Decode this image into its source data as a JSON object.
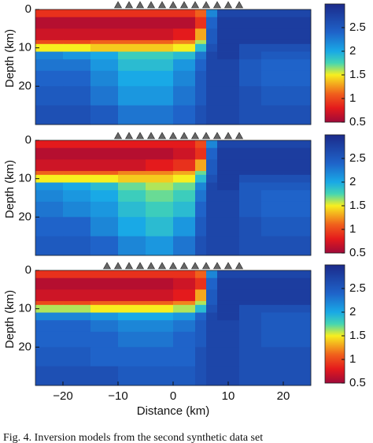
{
  "chart_data": [
    {
      "type": "heatmap",
      "ylabel": "Depth (km)",
      "xlim": [
        -25,
        25
      ],
      "ylim": [
        0,
        30
      ],
      "yticks": [
        0,
        10,
        20
      ],
      "xbins": [
        -25,
        -20,
        -15,
        -10,
        -5,
        0,
        4,
        6,
        8,
        12,
        16,
        20,
        25
      ],
      "ybins": [
        0,
        2,
        5,
        8,
        9,
        11,
        13,
        16,
        20,
        25,
        30
      ],
      "z": [
        [
          0.9,
          0.9,
          0.9,
          0.9,
          0.9,
          0.9,
          1.1,
          2.2,
          2.7,
          2.7,
          2.7,
          2.7
        ],
        [
          0.6,
          0.6,
          0.6,
          0.6,
          0.6,
          0.6,
          0.9,
          2.4,
          2.8,
          2.8,
          2.8,
          2.8
        ],
        [
          0.7,
          0.7,
          0.7,
          0.7,
          0.7,
          0.8,
          1.3,
          2.5,
          2.8,
          2.8,
          2.8,
          2.8
        ],
        [
          1.0,
          1.0,
          1.1,
          1.1,
          1.1,
          1.2,
          1.6,
          2.5,
          2.8,
          2.8,
          2.8,
          2.8
        ],
        [
          1.5,
          1.5,
          1.4,
          1.4,
          1.4,
          1.5,
          1.9,
          2.6,
          2.8,
          2.6,
          2.6,
          2.6
        ],
        [
          2.2,
          2.1,
          2.0,
          1.8,
          1.8,
          1.9,
          2.3,
          2.7,
          2.8,
          2.6,
          2.5,
          2.5
        ],
        [
          2.3,
          2.3,
          2.1,
          1.9,
          1.9,
          2.1,
          2.4,
          2.7,
          2.7,
          2.5,
          2.4,
          2.4
        ],
        [
          2.4,
          2.4,
          2.2,
          2.0,
          2.0,
          2.2,
          2.5,
          2.7,
          2.7,
          2.5,
          2.4,
          2.4
        ],
        [
          2.5,
          2.5,
          2.3,
          2.1,
          2.1,
          2.3,
          2.5,
          2.7,
          2.7,
          2.6,
          2.5,
          2.5
        ],
        [
          2.6,
          2.6,
          2.5,
          2.3,
          2.3,
          2.4,
          2.6,
          2.7,
          2.7,
          2.6,
          2.6,
          2.6
        ]
      ],
      "zlim": [
        0.5,
        3.0
      ],
      "zticks": [
        0.5,
        1,
        1.5,
        2,
        2.5
      ],
      "colormap": [
        [
          0.5,
          "#9e0a3a"
        ],
        [
          0.8,
          "#e41a1c"
        ],
        [
          1.1,
          "#f0601c"
        ],
        [
          1.5,
          "#f7ef1f"
        ],
        [
          1.75,
          "#45d6b2"
        ],
        [
          2.0,
          "#19a9e6"
        ],
        [
          2.4,
          "#1f63c9"
        ],
        [
          3.0,
          "#1b2a8a"
        ]
      ],
      "stations": [
        -10,
        -8,
        -6,
        -4,
        -2,
        0,
        2,
        4,
        6,
        8,
        10,
        12
      ]
    },
    {
      "type": "heatmap",
      "ylabel": "Depth (km)",
      "xlim": [
        -25,
        25
      ],
      "ylim": [
        0,
        30
      ],
      "yticks": [
        0,
        10,
        20
      ],
      "xbins": [
        -25,
        -20,
        -15,
        -10,
        -5,
        0,
        4,
        6,
        8,
        12,
        16,
        20,
        25
      ],
      "ybins": [
        0,
        2,
        5,
        8,
        9,
        11,
        13,
        16,
        20,
        25,
        30
      ],
      "z": [
        [
          0.8,
          0.8,
          0.8,
          0.8,
          0.8,
          0.8,
          1.0,
          2.2,
          2.7,
          2.7,
          2.7,
          2.7
        ],
        [
          0.6,
          0.6,
          0.6,
          0.6,
          0.6,
          0.7,
          0.9,
          2.4,
          2.8,
          2.8,
          2.8,
          2.8
        ],
        [
          0.7,
          0.7,
          0.7,
          0.7,
          0.8,
          0.9,
          1.3,
          2.5,
          2.8,
          2.8,
          2.8,
          2.8
        ],
        [
          1.1,
          1.1,
          1.1,
          1.2,
          1.2,
          1.3,
          1.7,
          2.5,
          2.8,
          2.8,
          2.8,
          2.8
        ],
        [
          1.5,
          1.5,
          1.5,
          1.4,
          1.4,
          1.5,
          1.9,
          2.6,
          2.8,
          2.6,
          2.6,
          2.6
        ],
        [
          2.1,
          2.0,
          1.9,
          1.7,
          1.6,
          1.7,
          2.2,
          2.7,
          2.8,
          2.5,
          2.5,
          2.5
        ],
        [
          2.2,
          2.1,
          2.0,
          1.8,
          1.7,
          1.8,
          2.3,
          2.7,
          2.7,
          2.5,
          2.4,
          2.4
        ],
        [
          2.3,
          2.2,
          2.1,
          1.9,
          1.8,
          1.9,
          2.4,
          2.7,
          2.7,
          2.5,
          2.4,
          2.4
        ],
        [
          2.4,
          2.4,
          2.2,
          2.0,
          1.9,
          2.1,
          2.5,
          2.7,
          2.7,
          2.6,
          2.5,
          2.5
        ],
        [
          2.5,
          2.5,
          2.4,
          2.2,
          2.1,
          2.3,
          2.6,
          2.7,
          2.7,
          2.6,
          2.6,
          2.6
        ]
      ],
      "zlim": [
        0.5,
        3.0
      ],
      "zticks": [
        0.5,
        1,
        1.5,
        2,
        2.5
      ],
      "colormap": [
        [
          0.5,
          "#9e0a3a"
        ],
        [
          0.8,
          "#e41a1c"
        ],
        [
          1.1,
          "#f0601c"
        ],
        [
          1.5,
          "#f7ef1f"
        ],
        [
          1.75,
          "#45d6b2"
        ],
        [
          2.0,
          "#19a9e6"
        ],
        [
          2.4,
          "#1f63c9"
        ],
        [
          3.0,
          "#1b2a8a"
        ]
      ],
      "stations": [
        -10,
        -8,
        -6,
        -4,
        -2,
        0,
        2,
        4,
        6,
        8,
        10,
        12
      ]
    },
    {
      "type": "heatmap",
      "ylabel": "Depth (km)",
      "xlabel": "Distance (km)",
      "xlim": [
        -25,
        25
      ],
      "ylim": [
        0,
        30
      ],
      "yticks": [
        0,
        10,
        20
      ],
      "xticks": [
        {
          "value": -20,
          "label": "−20"
        },
        {
          "value": -10,
          "label": "−10"
        },
        0,
        10,
        20
      ],
      "xbins": [
        -25,
        -20,
        -15,
        -10,
        -5,
        0,
        4,
        6,
        8,
        12,
        16,
        20,
        25
      ],
      "ybins": [
        0,
        2,
        5,
        8,
        9,
        11,
        13,
        16,
        20,
        25,
        30
      ],
      "z": [
        [
          0.9,
          0.9,
          0.9,
          0.9,
          0.9,
          0.9,
          1.1,
          2.2,
          2.7,
          2.7,
          2.7,
          2.7
        ],
        [
          0.6,
          0.6,
          0.6,
          0.6,
          0.6,
          0.7,
          0.9,
          2.4,
          2.8,
          2.8,
          2.8,
          2.8
        ],
        [
          0.7,
          0.7,
          0.7,
          0.7,
          0.7,
          0.8,
          1.3,
          2.5,
          2.8,
          2.8,
          2.8,
          2.8
        ],
        [
          1.0,
          1.0,
          1.1,
          1.1,
          1.1,
          1.2,
          1.6,
          2.5,
          2.8,
          2.8,
          2.8,
          2.8
        ],
        [
          1.6,
          1.6,
          1.5,
          1.5,
          1.5,
          1.6,
          1.9,
          2.6,
          2.8,
          2.6,
          2.6,
          2.6
        ],
        [
          2.2,
          2.2,
          2.1,
          2.0,
          2.0,
          2.1,
          2.4,
          2.7,
          2.8,
          2.6,
          2.5,
          2.5
        ],
        [
          2.4,
          2.4,
          2.3,
          2.2,
          2.2,
          2.3,
          2.5,
          2.7,
          2.7,
          2.6,
          2.5,
          2.5
        ],
        [
          2.4,
          2.4,
          2.4,
          2.3,
          2.3,
          2.4,
          2.5,
          2.7,
          2.7,
          2.6,
          2.5,
          2.5
        ],
        [
          2.5,
          2.5,
          2.4,
          2.4,
          2.4,
          2.4,
          2.6,
          2.7,
          2.7,
          2.6,
          2.6,
          2.6
        ],
        [
          2.6,
          2.6,
          2.6,
          2.5,
          2.5,
          2.5,
          2.6,
          2.7,
          2.7,
          2.6,
          2.6,
          2.6
        ]
      ],
      "zlim": [
        0.5,
        3.0
      ],
      "zticks": [
        0.5,
        1,
        1.5,
        2,
        2.5
      ],
      "colormap": [
        [
          0.5,
          "#9e0a3a"
        ],
        [
          0.8,
          "#e41a1c"
        ],
        [
          1.1,
          "#f0601c"
        ],
        [
          1.5,
          "#f7ef1f"
        ],
        [
          1.75,
          "#45d6b2"
        ],
        [
          2.0,
          "#19a9e6"
        ],
        [
          2.4,
          "#1f63c9"
        ],
        [
          3.0,
          "#1b2a8a"
        ]
      ],
      "stations": [
        -12,
        -10,
        -8,
        -6,
        -4,
        -2,
        0,
        2,
        4,
        6,
        8,
        10,
        12
      ]
    }
  ],
  "caption": "Fig. 4. Inversion models from the second synthetic data set"
}
